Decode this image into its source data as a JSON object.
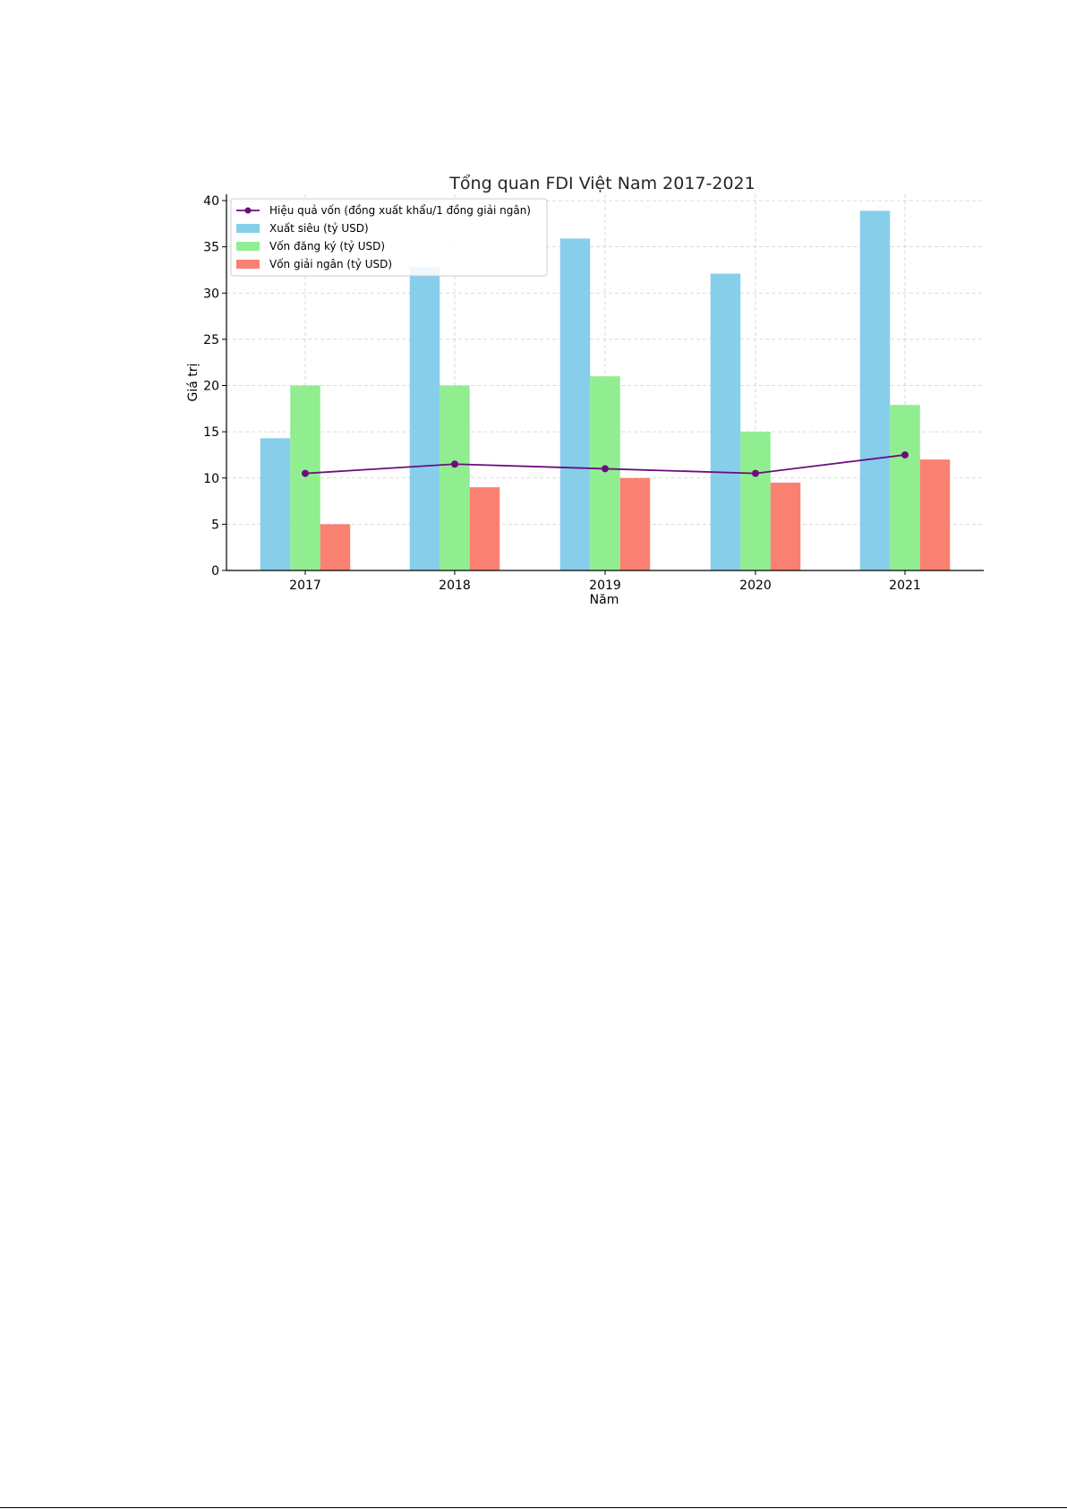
{
  "chart_data": {
    "type": "bar",
    "title": "Tổng quan FDI Việt Nam 2017-2021",
    "xlabel": "Năm",
    "ylabel": "Giá trị",
    "ylim": [
      0,
      40
    ],
    "yticks": [
      0,
      5,
      10,
      15,
      20,
      25,
      30,
      35,
      40
    ],
    "categories": [
      "2017",
      "2018",
      "2019",
      "2020",
      "2021"
    ],
    "grid": true,
    "legend_position": "top-left",
    "series": [
      {
        "name": "Xuất siêu (tỷ USD)",
        "type": "bar",
        "color": "#87CEEB",
        "values": [
          14.3,
          32.8,
          35.9,
          32.1,
          38.9
        ]
      },
      {
        "name": "Vốn đăng ký (tỷ USD)",
        "type": "bar",
        "color": "#90EE90",
        "values": [
          20.0,
          20.0,
          21.0,
          15.0,
          17.9
        ]
      },
      {
        "name": "Vốn giải ngân (tỷ USD)",
        "type": "bar",
        "color": "#FA8072",
        "values": [
          5.0,
          9.0,
          10.0,
          9.5,
          12.0
        ]
      },
      {
        "name": "Hiệu quả vốn (đồng xuất khẩu/1 đồng giải ngân)",
        "type": "line",
        "color": "#6A0F7A",
        "values": [
          10.5,
          11.5,
          11.0,
          10.5,
          12.5
        ]
      }
    ]
  }
}
